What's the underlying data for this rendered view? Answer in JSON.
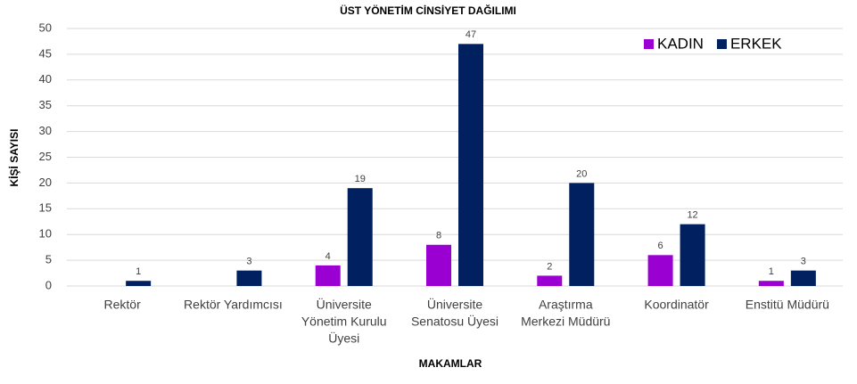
{
  "chart_data": {
    "type": "bar",
    "title": "ÜST YÖNETİM CİNSİYET DAĞILIMI",
    "x_label": "MAKAMLAR",
    "y_label": "KİŞİ SAYISI",
    "categories": [
      [
        "Rektör"
      ],
      [
        "Rektör Yardımcısı"
      ],
      [
        "Üniversite",
        "Yönetim Kurulu",
        "Üyesi"
      ],
      [
        "Üniversite",
        "Senatosu Üyesi"
      ],
      [
        "Araştırma",
        "Merkezi Müdürü"
      ],
      [
        "Koordinatör"
      ],
      [
        "Enstitü Müdürü"
      ]
    ],
    "series": [
      {
        "name": "KADIN",
        "color": "#9b00d3",
        "values": [
          null,
          null,
          4,
          8,
          2,
          6,
          1
        ]
      },
      {
        "name": "ERKEK",
        "color": "#002060",
        "values": [
          1,
          3,
          19,
          47,
          20,
          12,
          3
        ]
      }
    ],
    "ylim": [
      0,
      50
    ],
    "yticks": [
      0,
      5,
      10,
      15,
      20,
      25,
      30,
      35,
      40,
      45,
      50
    ],
    "grid": true,
    "legend": "top-right"
  }
}
